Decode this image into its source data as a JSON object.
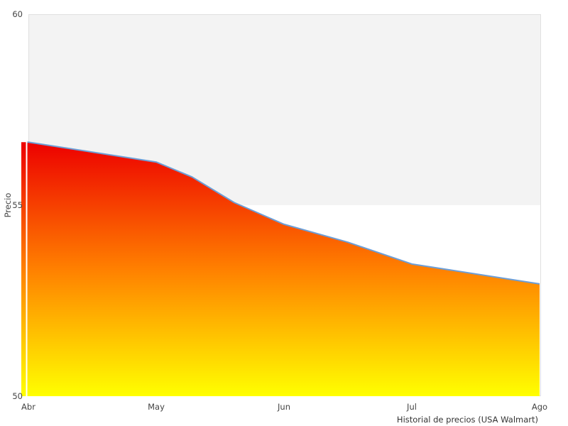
{
  "chart_data": {
    "type": "area",
    "title": "",
    "xlabel": "Historial de precios (USA Walmart)",
    "ylabel": "Precio",
    "x_tick_labels": [
      "Abr",
      "May",
      "Jun",
      "Jul",
      "Ago"
    ],
    "x_tick_positions": [
      0,
      1,
      2,
      3,
      4
    ],
    "xlim": [
      0,
      4
    ],
    "ylim": [
      50,
      60
    ],
    "y_ticks": [
      50,
      55,
      60
    ],
    "grid": "off",
    "legend": "none",
    "bands": [
      {
        "from": 55,
        "to": 60,
        "color": "#f3f3f3"
      }
    ],
    "series": [
      {
        "name": "Precio",
        "x": [
          0,
          1,
          1.28,
          1.61,
          2,
          2.5,
          3,
          4
        ],
        "values": [
          56.65,
          56.13,
          55.74,
          55.07,
          54.5,
          54.03,
          53.46,
          52.94
        ]
      }
    ],
    "colors": {
      "line": "#6d9ed6",
      "area_gradient_top": "#ed0000",
      "area_gradient_mid": "#ff8000",
      "area_gradient_bottom": "#ffff00",
      "band_fill": "#f3f3f3",
      "plot_border": "#e0e0e0",
      "tick_label": "#444444",
      "caption": "#333333"
    }
  }
}
